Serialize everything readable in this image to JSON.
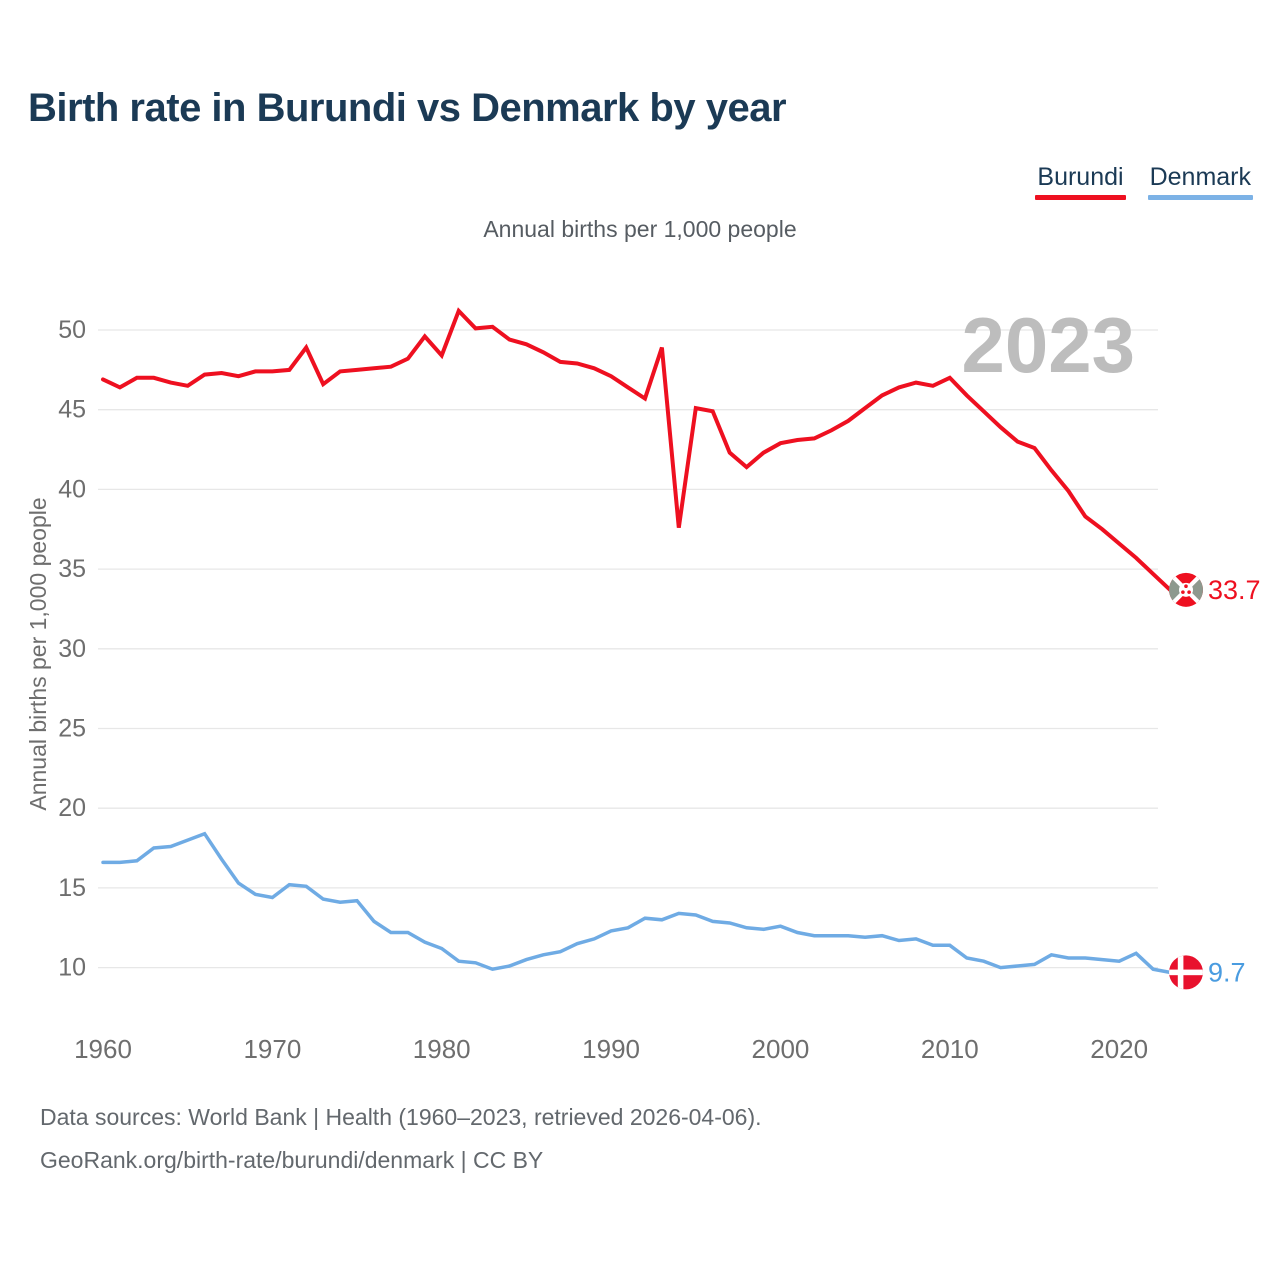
{
  "page": {
    "title": "Birth rate in Burundi vs Denmark by year",
    "subtitle": "Annual births per 1,000 people",
    "watermark": "2023",
    "footer_line1": "Data sources: World Bank | Health (1960–2023, retrieved 2026-04-06).",
    "footer_line2": "GeoRank.org/birth-rate/burundi/denmark | CC BY"
  },
  "colors": {
    "title_text": "#1b3a55",
    "axis_text": "#6e6e6e",
    "grid": "#e7e7e7",
    "watermark": "#bdbdbd",
    "burundi_red": "#ee1020",
    "denmark_blue": "#6fabe4",
    "denmark_label_blue": "#4a9ce0",
    "denmark_flag_red": "#e8112d",
    "burundi_flag_green_gray": "#8e998e"
  },
  "legend": {
    "items": [
      {
        "label": "Burundi",
        "color": "#ee1020"
      },
      {
        "label": "Denmark",
        "color": "#7cb2e6"
      }
    ]
  },
  "chart_data": {
    "type": "line",
    "title": "Birth rate in Burundi vs Denmark by year",
    "subtitle": "Annual births per 1,000 people",
    "xlabel": "",
    "ylabel": "Annual births per 1,000 people",
    "grid": true,
    "legend_position": "top-right",
    "watermark": "2023",
    "ylim": [
      10,
      50
    ],
    "yticks": [
      10,
      15,
      20,
      25,
      30,
      35,
      40,
      45,
      50
    ],
    "xticks": [
      1960,
      1970,
      1980,
      1990,
      2000,
      2010,
      2020
    ],
    "x": [
      1960,
      1961,
      1962,
      1963,
      1964,
      1965,
      1966,
      1967,
      1968,
      1969,
      1970,
      1971,
      1972,
      1973,
      1974,
      1975,
      1976,
      1977,
      1978,
      1979,
      1980,
      1981,
      1982,
      1983,
      1984,
      1985,
      1986,
      1987,
      1988,
      1989,
      1990,
      1991,
      1992,
      1993,
      1994,
      1995,
      1996,
      1997,
      1998,
      1999,
      2000,
      2001,
      2002,
      2003,
      2004,
      2005,
      2006,
      2007,
      2008,
      2009,
      2010,
      2011,
      2012,
      2013,
      2014,
      2015,
      2016,
      2017,
      2018,
      2019,
      2020,
      2021,
      2022,
      2023
    ],
    "series": [
      {
        "name": "Burundi",
        "color": "#ee1020",
        "label_color": "#ee1020",
        "end_label": "33.7",
        "values": [
          46.9,
          46.4,
          47.0,
          47.0,
          46.7,
          46.5,
          47.2,
          47.3,
          47.1,
          47.4,
          47.4,
          47.5,
          48.9,
          46.6,
          47.4,
          47.5,
          47.6,
          47.7,
          48.2,
          49.6,
          48.4,
          51.2,
          50.1,
          50.2,
          49.4,
          49.1,
          48.6,
          48.0,
          47.9,
          47.6,
          47.1,
          46.4,
          45.7,
          48.9,
          37.6,
          45.1,
          44.9,
          42.3,
          41.4,
          42.3,
          42.9,
          43.1,
          43.2,
          43.7,
          44.3,
          45.1,
          45.9,
          46.4,
          46.7,
          46.5,
          47.0,
          45.9,
          44.9,
          43.9,
          43.0,
          42.6,
          41.2,
          39.9,
          38.3,
          37.5,
          36.6,
          35.7,
          34.7,
          33.7
        ]
      },
      {
        "name": "Denmark",
        "color": "#6fabe4",
        "label_color": "#4a9ce0",
        "end_label": "9.7",
        "values": [
          16.6,
          16.6,
          16.7,
          17.5,
          17.6,
          18.0,
          18.4,
          16.8,
          15.3,
          14.6,
          14.4,
          15.2,
          15.1,
          14.3,
          14.1,
          14.2,
          12.9,
          12.2,
          12.2,
          11.6,
          11.2,
          10.4,
          10.3,
          9.9,
          10.1,
          10.5,
          10.8,
          11.0,
          11.5,
          11.8,
          12.3,
          12.5,
          13.1,
          13.0,
          13.4,
          13.3,
          12.9,
          12.8,
          12.5,
          12.4,
          12.6,
          12.2,
          12.0,
          12.0,
          12.0,
          11.9,
          12.0,
          11.7,
          11.8,
          11.4,
          11.4,
          10.6,
          10.4,
          10.0,
          10.1,
          10.2,
          10.8,
          10.6,
          10.6,
          10.5,
          10.4,
          10.9,
          9.9,
          9.7
        ]
      }
    ]
  }
}
